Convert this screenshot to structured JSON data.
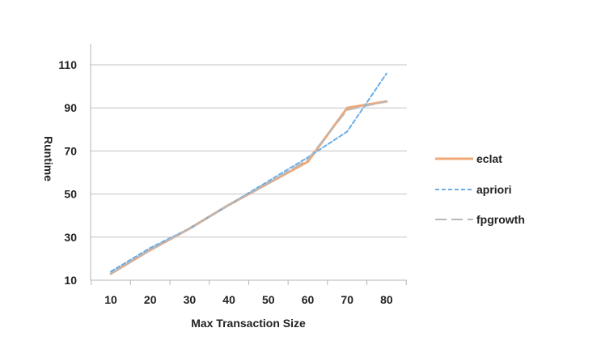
{
  "chart_data": {
    "type": "line",
    "xlabel": "Max Transaction Size",
    "ylabel": "Runtime",
    "x": [
      10,
      20,
      30,
      40,
      50,
      60,
      70,
      80
    ],
    "xticks": [
      "10",
      "20",
      "30",
      "40",
      "50",
      "60",
      "70",
      "80"
    ],
    "yticks": [
      "10",
      "30",
      "50",
      "70",
      "90",
      "110"
    ],
    "ylim": [
      10,
      110
    ],
    "grid": "horizontal",
    "legend_position": "right",
    "series": [
      {
        "name": "eclat",
        "values": [
          13,
          24,
          34,
          45,
          55,
          65,
          90,
          93
        ],
        "color": "#f0a878",
        "style": "solid"
      },
      {
        "name": "apriori",
        "values": [
          14,
          25,
          34,
          45,
          56,
          67,
          79,
          106
        ],
        "color": "#6aaee6",
        "style": "dashed"
      },
      {
        "name": "fpgrowth",
        "values": [
          13,
          24,
          34,
          45,
          55,
          66,
          89,
          93
        ],
        "color": "#b8b8b8",
        "style": "longdash"
      }
    ]
  }
}
